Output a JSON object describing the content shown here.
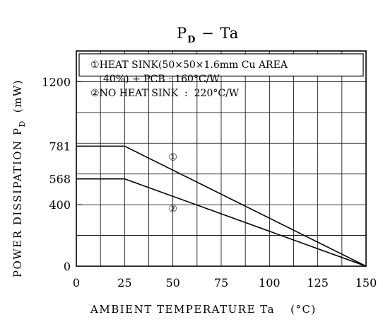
{
  "chart_data": {
    "type": "line",
    "title_main": "P",
    "title_subscript": "D",
    "title_rest": " − Ta",
    "xlabel": "AMBIENT TEMPERATURE Ta",
    "xlabel_unit": "(°C)",
    "ylabel": "POWER DISSIPATION P",
    "ylabel_subscript": "D",
    "ylabel_unit": "(mW)",
    "xlim": [
      0,
      150
    ],
    "ylim": [
      0,
      1400
    ],
    "x_ticks": [
      0,
      25,
      50,
      75,
      100,
      125,
      150
    ],
    "x_tick_labels": [
      "0",
      "25",
      "50",
      "75",
      "100",
      "125",
      "150"
    ],
    "y_ticks": [
      0,
      400,
      568,
      781,
      1200
    ],
    "y_tick_labels": [
      "0",
      "400",
      "568",
      "781",
      "1200"
    ],
    "grid": true,
    "x_grid": [
      0,
      12.5,
      25,
      37.5,
      50,
      62.5,
      75,
      87.5,
      100,
      112.5,
      125,
      137.5,
      150
    ],
    "y_grid": [
      0,
      200,
      400,
      600,
      800,
      1000,
      1200,
      1400
    ],
    "legend_position": "top",
    "legend": [
      {
        "marker": "①",
        "text_line1": "HEAT SINK(50×50×1.6mm Cu AREA",
        "text_line2": "40%) + PCB : 160°C/W"
      },
      {
        "marker": "②",
        "text_line1": "NO HEAT SINK  :  220°C/W"
      }
    ],
    "series": [
      {
        "name": "①",
        "x": [
          0,
          25,
          150
        ],
        "y": [
          781,
          781,
          0
        ]
      },
      {
        "name": "②",
        "x": [
          0,
          25,
          150
        ],
        "y": [
          568,
          568,
          0
        ]
      }
    ]
  }
}
